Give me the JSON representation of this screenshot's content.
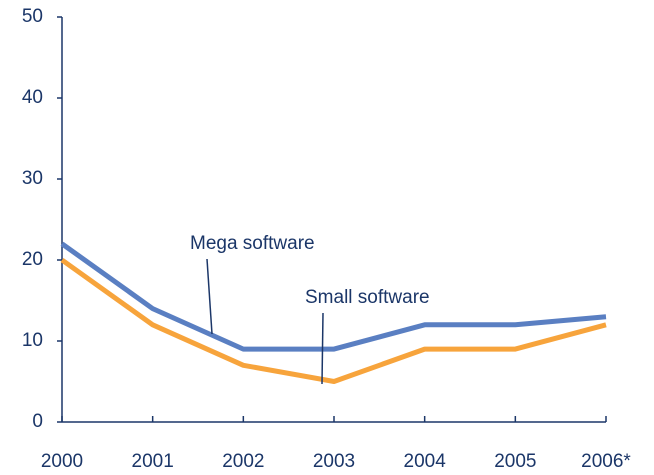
{
  "chart_data": {
    "type": "line",
    "categories": [
      "2000",
      "2001",
      "2002",
      "2003",
      "2004",
      "2005",
      "2006*"
    ],
    "series": [
      {
        "name": "Mega software",
        "color": "#5a7fc2",
        "values": [
          22,
          14,
          9,
          9,
          12,
          12,
          13
        ]
      },
      {
        "name": "Small software",
        "color": "#f7a43c",
        "values": [
          20,
          12,
          7,
          5,
          9,
          9,
          12
        ]
      }
    ],
    "ylim": [
      0,
      50
    ],
    "yticks": [
      0,
      10,
      20,
      30,
      40,
      50
    ]
  }
}
